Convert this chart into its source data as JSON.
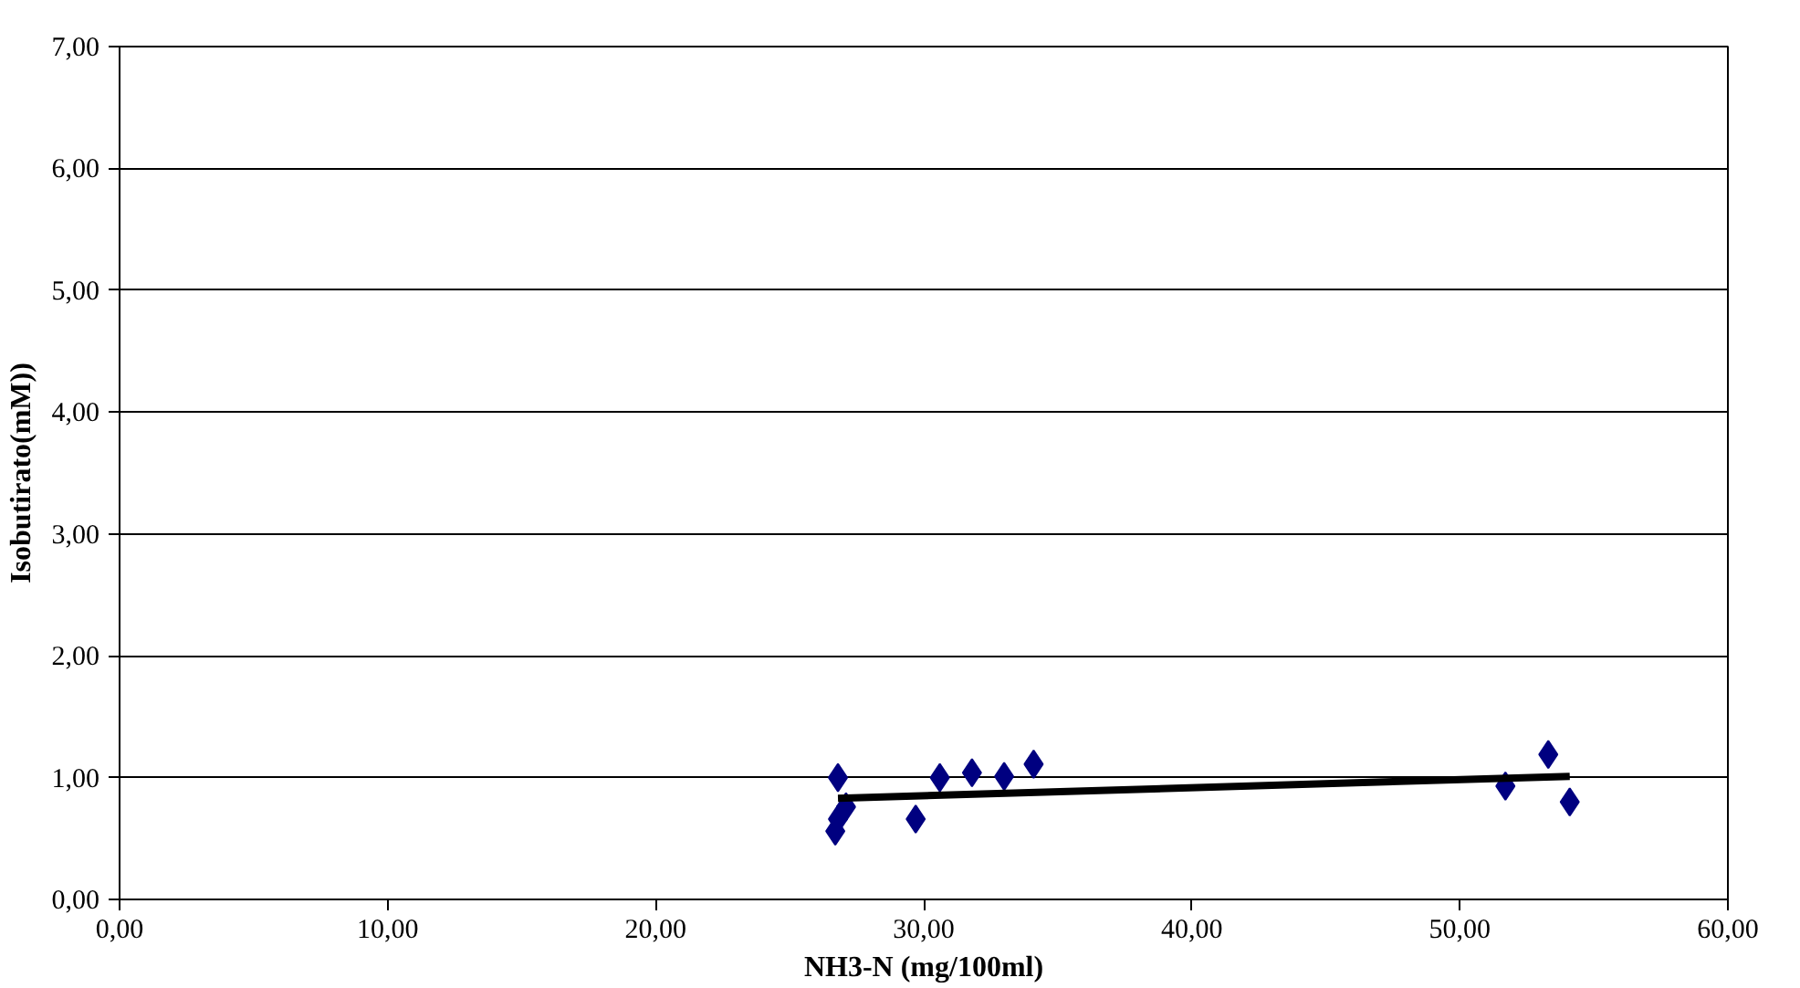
{
  "chart_data": {
    "type": "scatter",
    "xlabel": "NH3-N (mg/100ml)",
    "ylabel": "Isobutirato(mM))",
    "xlim": [
      0,
      60
    ],
    "ylim": [
      0,
      7
    ],
    "xticks": [
      {
        "value": 0,
        "label": "0,00"
      },
      {
        "value": 10,
        "label": "10,00"
      },
      {
        "value": 20,
        "label": "20,00"
      },
      {
        "value": 30,
        "label": "30,00"
      },
      {
        "value": 40,
        "label": "40,00"
      },
      {
        "value": 50,
        "label": "50,00"
      },
      {
        "value": 60,
        "label": "60,00"
      }
    ],
    "yticks": [
      {
        "value": 0,
        "label": "0,00"
      },
      {
        "value": 1,
        "label": "1,00"
      },
      {
        "value": 2,
        "label": "2,00"
      },
      {
        "value": 3,
        "label": "3,00"
      },
      {
        "value": 4,
        "label": "4,00"
      },
      {
        "value": 5,
        "label": "5,00"
      },
      {
        "value": 6,
        "label": "6,00"
      },
      {
        "value": 7,
        "label": "7,00"
      }
    ],
    "grid": "y",
    "series": [
      {
        "marker": "diamond",
        "color": "#000080",
        "x": [
          26.8,
          26.7,
          26.8,
          27.1,
          29.7,
          30.6,
          31.8,
          33.0,
          34.1,
          51.7,
          53.3,
          54.1
        ],
        "values": [
          1.0,
          0.56,
          0.66,
          0.76,
          0.66,
          1.0,
          1.04,
          1.01,
          1.11,
          0.93,
          1.19,
          0.8
        ]
      },
      {
        "type": "line",
        "marker": "none",
        "color": "#000000",
        "x": [
          26.8,
          54.1
        ],
        "values": [
          0.83,
          1.01
        ]
      }
    ]
  }
}
